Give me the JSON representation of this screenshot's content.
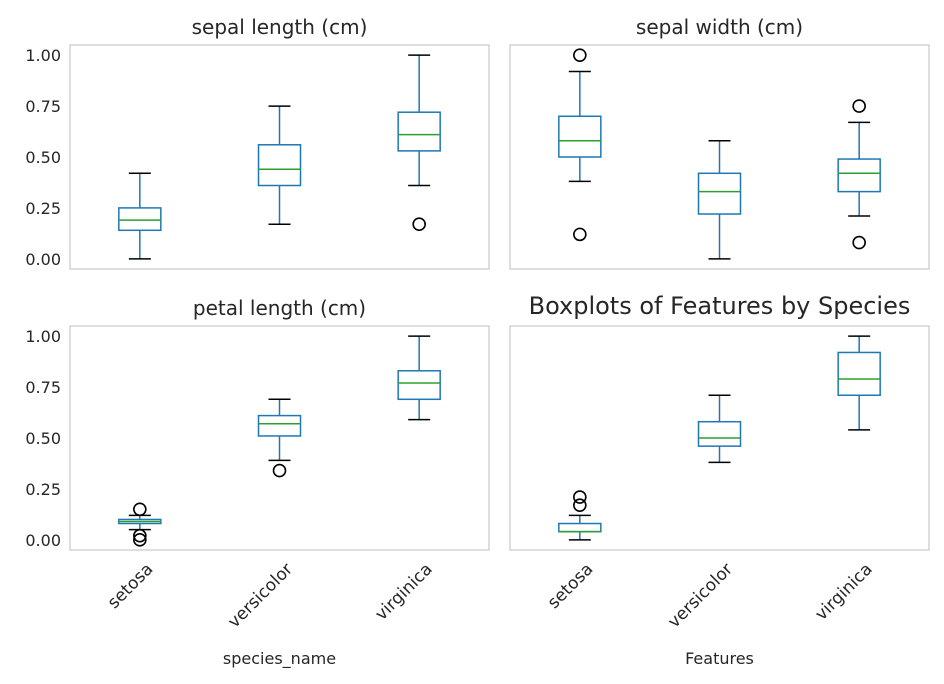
{
  "chart_data": [
    {
      "type": "box",
      "title": "sepal length (cm)",
      "xlabel": "",
      "ylim": [
        -0.05,
        1.05
      ],
      "yticks": [
        "0.00",
        "0.25",
        "0.50",
        "0.75",
        "1.00"
      ],
      "categories": [
        "setosa",
        "versicolor",
        "virginica"
      ],
      "boxes": [
        {
          "whislo": 0.0,
          "q1": 0.14,
          "med": 0.19,
          "q3": 0.25,
          "whishi": 0.42,
          "fliers": []
        },
        {
          "whislo": 0.17,
          "q1": 0.36,
          "med": 0.44,
          "q3": 0.56,
          "whishi": 0.75,
          "fliers": []
        },
        {
          "whislo": 0.36,
          "q1": 0.53,
          "med": 0.61,
          "q3": 0.72,
          "whishi": 1.0,
          "fliers": [
            0.17
          ]
        }
      ]
    },
    {
      "type": "box",
      "title": "sepal width (cm)",
      "xlabel": "",
      "ylim": [
        -0.05,
        1.05
      ],
      "yticks": [],
      "categories": [
        "setosa",
        "versicolor",
        "virginica"
      ],
      "boxes": [
        {
          "whislo": 0.38,
          "q1": 0.5,
          "med": 0.58,
          "q3": 0.7,
          "whishi": 0.92,
          "fliers": [
            1.0,
            0.12
          ]
        },
        {
          "whislo": 0.0,
          "q1": 0.22,
          "med": 0.33,
          "q3": 0.42,
          "whishi": 0.58,
          "fliers": []
        },
        {
          "whislo": 0.21,
          "q1": 0.33,
          "med": 0.42,
          "q3": 0.49,
          "whishi": 0.67,
          "fliers": [
            0.75,
            0.08
          ]
        }
      ]
    },
    {
      "type": "box",
      "title": "petal length (cm)",
      "xlabel": "species_name",
      "ylim": [
        -0.05,
        1.05
      ],
      "yticks": [
        "0.00",
        "0.25",
        "0.50",
        "0.75",
        "1.00"
      ],
      "categories": [
        "setosa",
        "versicolor",
        "virginica"
      ],
      "boxes": [
        {
          "whislo": 0.05,
          "q1": 0.08,
          "med": 0.09,
          "q3": 0.1,
          "whishi": 0.12,
          "fliers": [
            0.15,
            0.02,
            0.0
          ]
        },
        {
          "whislo": 0.39,
          "q1": 0.51,
          "med": 0.57,
          "q3": 0.61,
          "whishi": 0.69,
          "fliers": [
            0.34
          ]
        },
        {
          "whislo": 0.59,
          "q1": 0.69,
          "med": 0.77,
          "q3": 0.83,
          "whishi": 1.0,
          "fliers": []
        }
      ]
    },
    {
      "type": "box",
      "title": "Boxplots of Features by Species",
      "xlabel": "Features",
      "ylim": [
        -0.05,
        1.05
      ],
      "yticks": [],
      "categories": [
        "setosa",
        "versicolor",
        "virginica"
      ],
      "boxes": [
        {
          "whislo": 0.0,
          "q1": 0.04,
          "med": 0.04,
          "q3": 0.08,
          "whishi": 0.12,
          "fliers": [
            0.17,
            0.21
          ]
        },
        {
          "whislo": 0.38,
          "q1": 0.46,
          "med": 0.5,
          "q3": 0.58,
          "whishi": 0.71,
          "fliers": []
        },
        {
          "whislo": 0.54,
          "q1": 0.71,
          "med": 0.79,
          "q3": 0.92,
          "whishi": 1.0,
          "fliers": []
        }
      ]
    }
  ],
  "colors": {
    "box": "#1f77b4",
    "median": "#2ca02c",
    "flier": "#000000",
    "frame": "#cccccc",
    "text": "#262626"
  }
}
